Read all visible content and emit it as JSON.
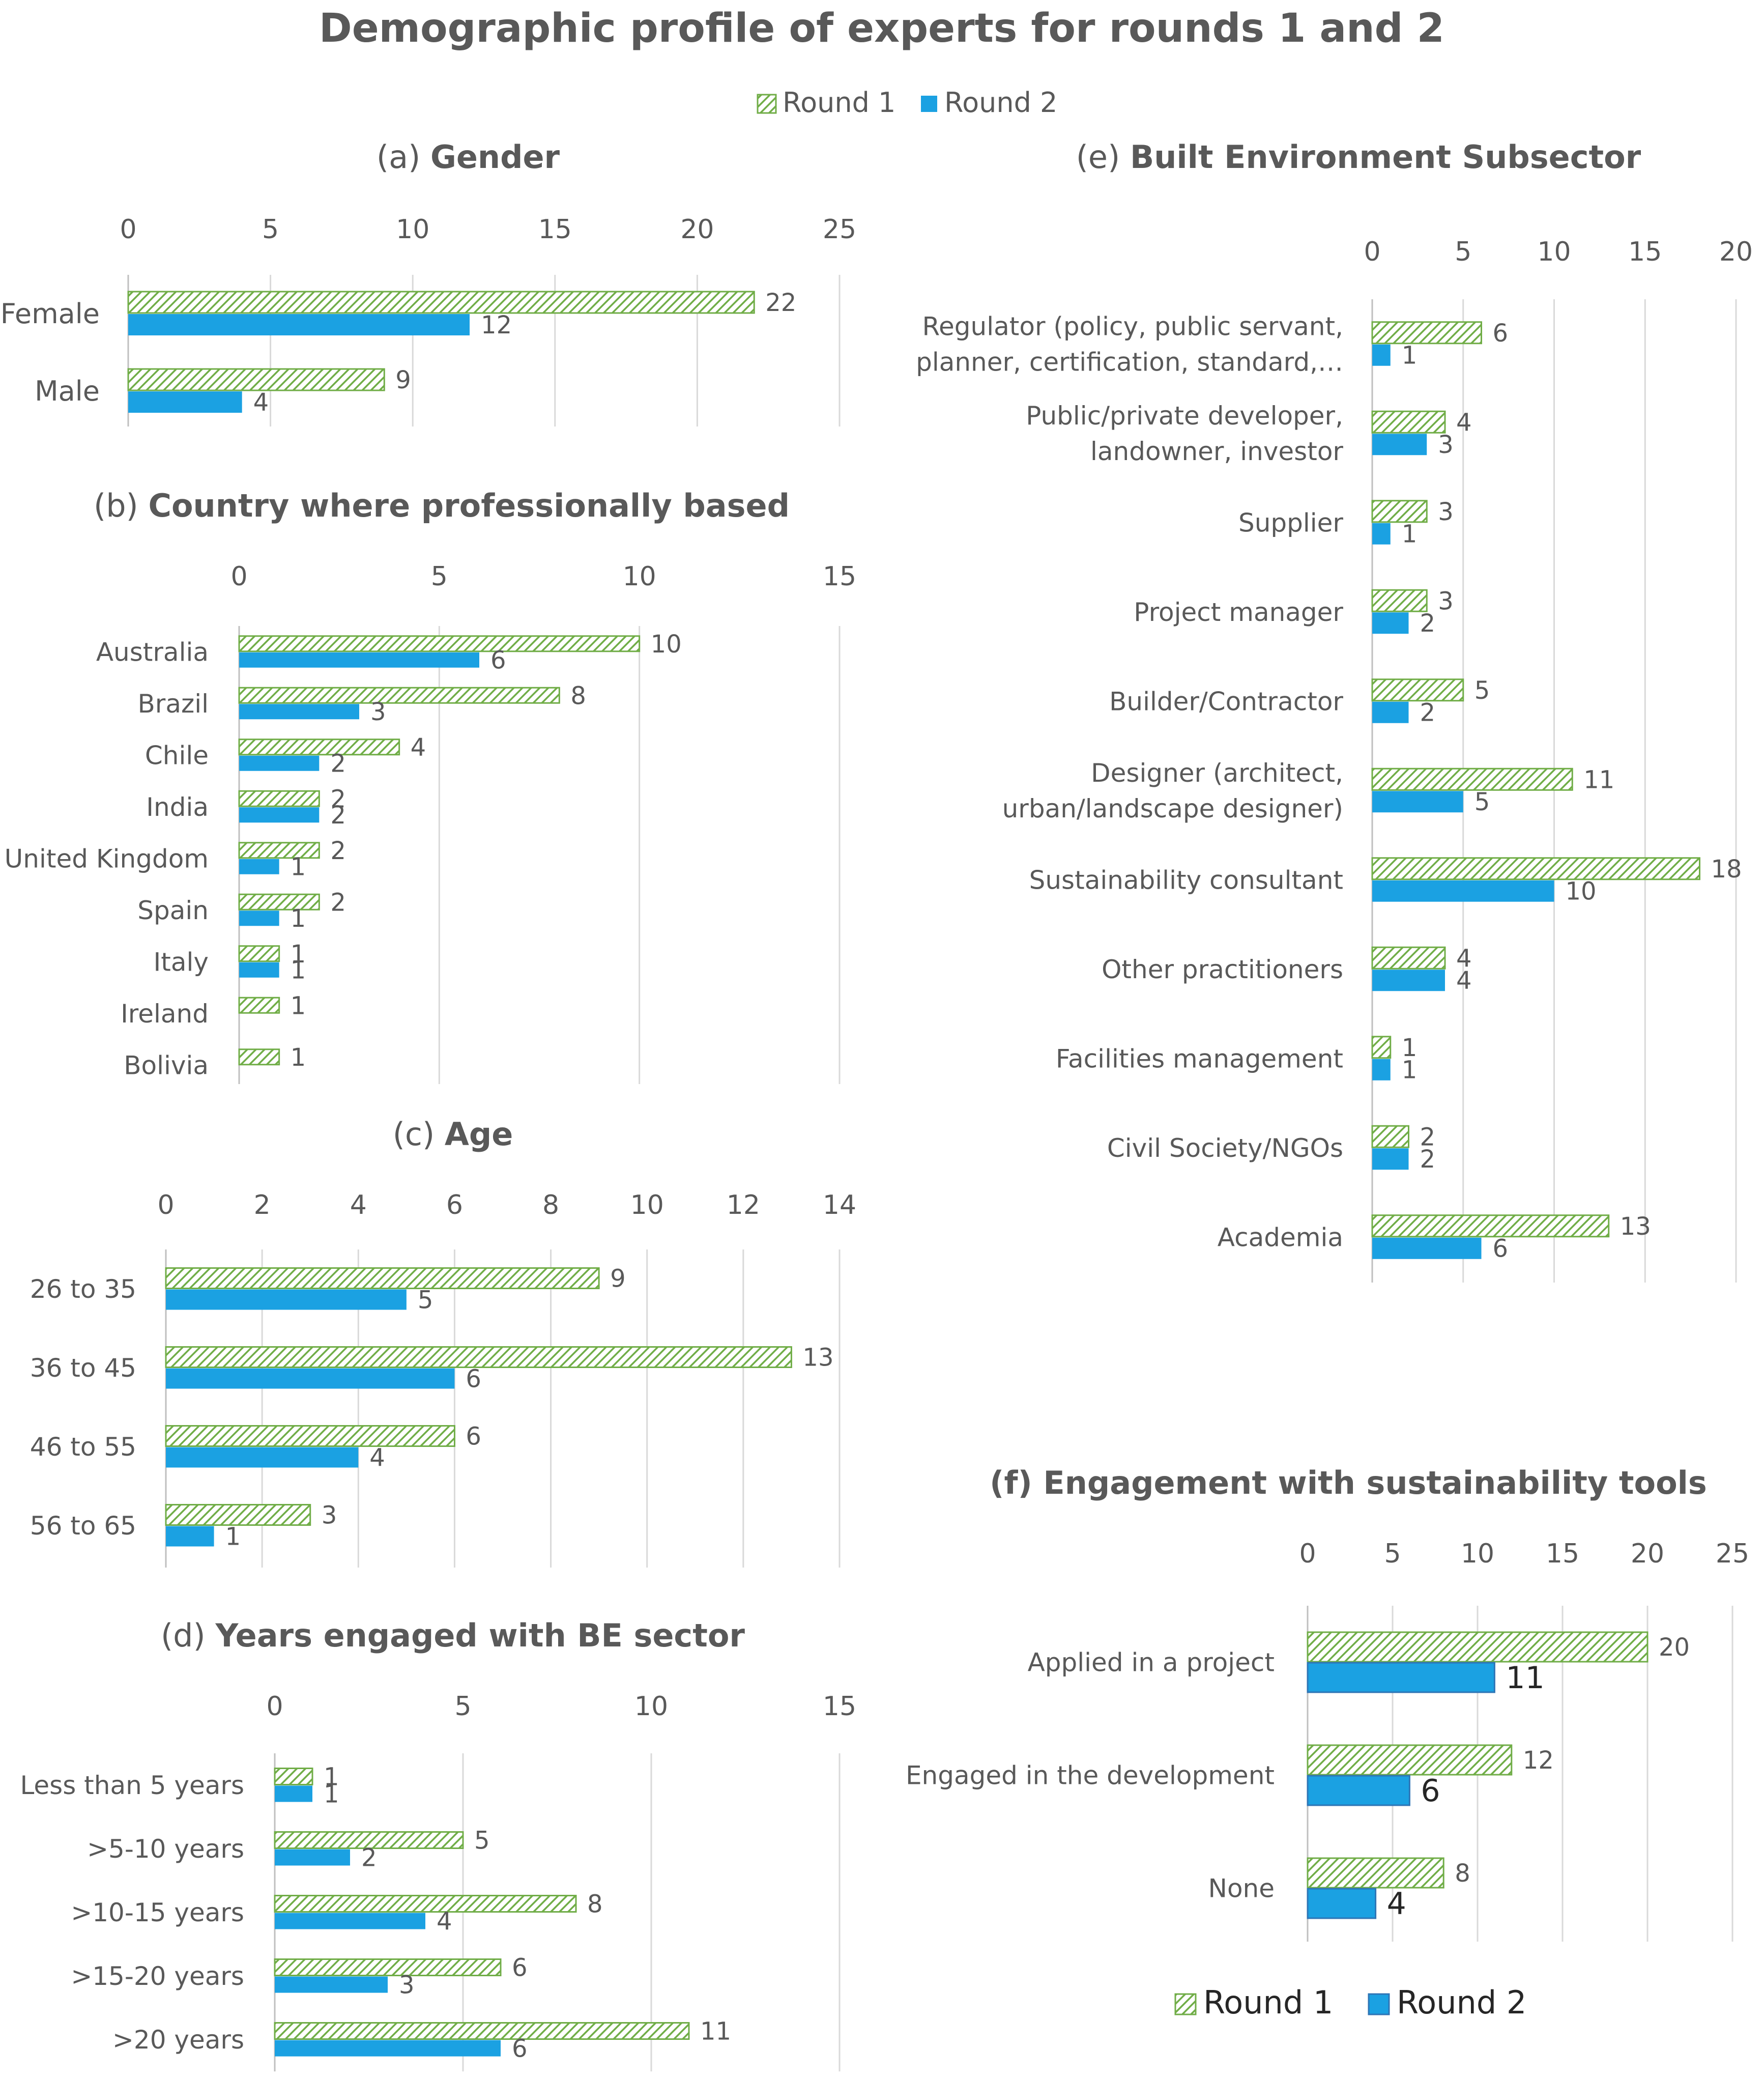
{
  "title": "Demographic profile of experts for rounds 1 and 2",
  "colors": {
    "round1": "#70AD47",
    "round2": "#1BA1E2",
    "text": "#595959",
    "grid": "#D9D9D9"
  },
  "legend_top": [
    "Round 1",
    "Round 2"
  ],
  "legend_bottom": [
    "Round 1",
    "Round 2"
  ],
  "chart_data": [
    {
      "type": "bar",
      "orientation": "horizontal",
      "id": "a",
      "title_prefix": "(a) ",
      "title_bold": "Gender",
      "categories": [
        "Female",
        "Male"
      ],
      "series": [
        {
          "name": "Round 1",
          "values": [
            22,
            9
          ]
        },
        {
          "name": "Round 2",
          "values": [
            12,
            4
          ]
        }
      ],
      "xlim": [
        0,
        25
      ],
      "ticks": [
        0,
        5,
        10,
        15,
        20,
        25
      ]
    },
    {
      "type": "bar",
      "orientation": "horizontal",
      "id": "b",
      "title_prefix": "(b) ",
      "title_bold": "Country where professionally based",
      "categories": [
        "Australia",
        "Brazil",
        "Chile",
        "India",
        "United Kingdom",
        "Spain",
        "Italy",
        "Ireland",
        "Bolivia"
      ],
      "series": [
        {
          "name": "Round 1",
          "values": [
            10,
            8,
            4,
            2,
            2,
            2,
            1,
            1,
            1
          ]
        },
        {
          "name": "Round 2",
          "values": [
            6,
            3,
            2,
            2,
            1,
            1,
            1,
            null,
            null
          ]
        }
      ],
      "xlim": [
        0,
        15
      ],
      "ticks": [
        0,
        5,
        10,
        15
      ]
    },
    {
      "type": "bar",
      "orientation": "horizontal",
      "id": "c",
      "title_prefix": "(c) ",
      "title_bold": "Age",
      "categories": [
        "26 to 35",
        "36 to 45",
        "46 to 55",
        "56 to 65"
      ],
      "series": [
        {
          "name": "Round 1",
          "values": [
            9,
            13,
            6,
            3
          ]
        },
        {
          "name": "Round 2",
          "values": [
            5,
            6,
            4,
            1
          ]
        }
      ],
      "xlim": [
        0,
        14
      ],
      "ticks": [
        0,
        2,
        4,
        6,
        8,
        10,
        12,
        14
      ]
    },
    {
      "type": "bar",
      "orientation": "horizontal",
      "id": "d",
      "title_prefix": "(d) ",
      "title_bold": "Years engaged with BE sector",
      "categories": [
        "Less than 5 years",
        ">5-10 years",
        ">10-15 years",
        ">15-20 years",
        ">20 years"
      ],
      "series": [
        {
          "name": "Round 1",
          "values": [
            1,
            5,
            8,
            6,
            11
          ]
        },
        {
          "name": "Round 2",
          "values": [
            1,
            2,
            4,
            3,
            6
          ]
        }
      ],
      "xlim": [
        0,
        15
      ],
      "ticks": [
        0,
        5,
        10,
        15
      ]
    },
    {
      "type": "bar",
      "orientation": "horizontal",
      "id": "e",
      "title_prefix": "(e) ",
      "title_bold": "Built Environment Subsector",
      "categories": [
        [
          "Regulator (policy, public servant,",
          "planner, certification, standard,…"
        ],
        [
          "Public/private developer,",
          "landowner, investor"
        ],
        [
          "Supplier"
        ],
        [
          "Project manager"
        ],
        [
          "Builder/Contractor"
        ],
        [
          "Designer (architect,",
          "urban/landscape designer)"
        ],
        [
          "Sustainability consultant"
        ],
        [
          "Other practitioners"
        ],
        [
          "Facilities management"
        ],
        [
          "Civil Society/NGOs"
        ],
        [
          "Academia"
        ]
      ],
      "series": [
        {
          "name": "Round 1",
          "values": [
            6,
            4,
            3,
            3,
            5,
            11,
            18,
            4,
            1,
            2,
            13
          ]
        },
        {
          "name": "Round 2",
          "values": [
            1,
            3,
            1,
            2,
            2,
            5,
            10,
            4,
            1,
            2,
            6
          ]
        }
      ],
      "xlim": [
        0,
        20
      ],
      "ticks": [
        0,
        5,
        10,
        15,
        20
      ]
    },
    {
      "type": "bar",
      "orientation": "horizontal",
      "id": "f",
      "title_prefix": "",
      "title_bold": "(f) Engagement with sustainability tools",
      "categories": [
        "Applied in a project",
        "Engaged in the development",
        "None"
      ],
      "series": [
        {
          "name": "Round 1",
          "values": [
            20,
            12,
            8
          ]
        },
        {
          "name": "Round 2",
          "values": [
            11,
            6,
            4
          ]
        }
      ],
      "xlim": [
        0,
        25
      ],
      "ticks": [
        0,
        5,
        10,
        15,
        20,
        25
      ]
    }
  ]
}
